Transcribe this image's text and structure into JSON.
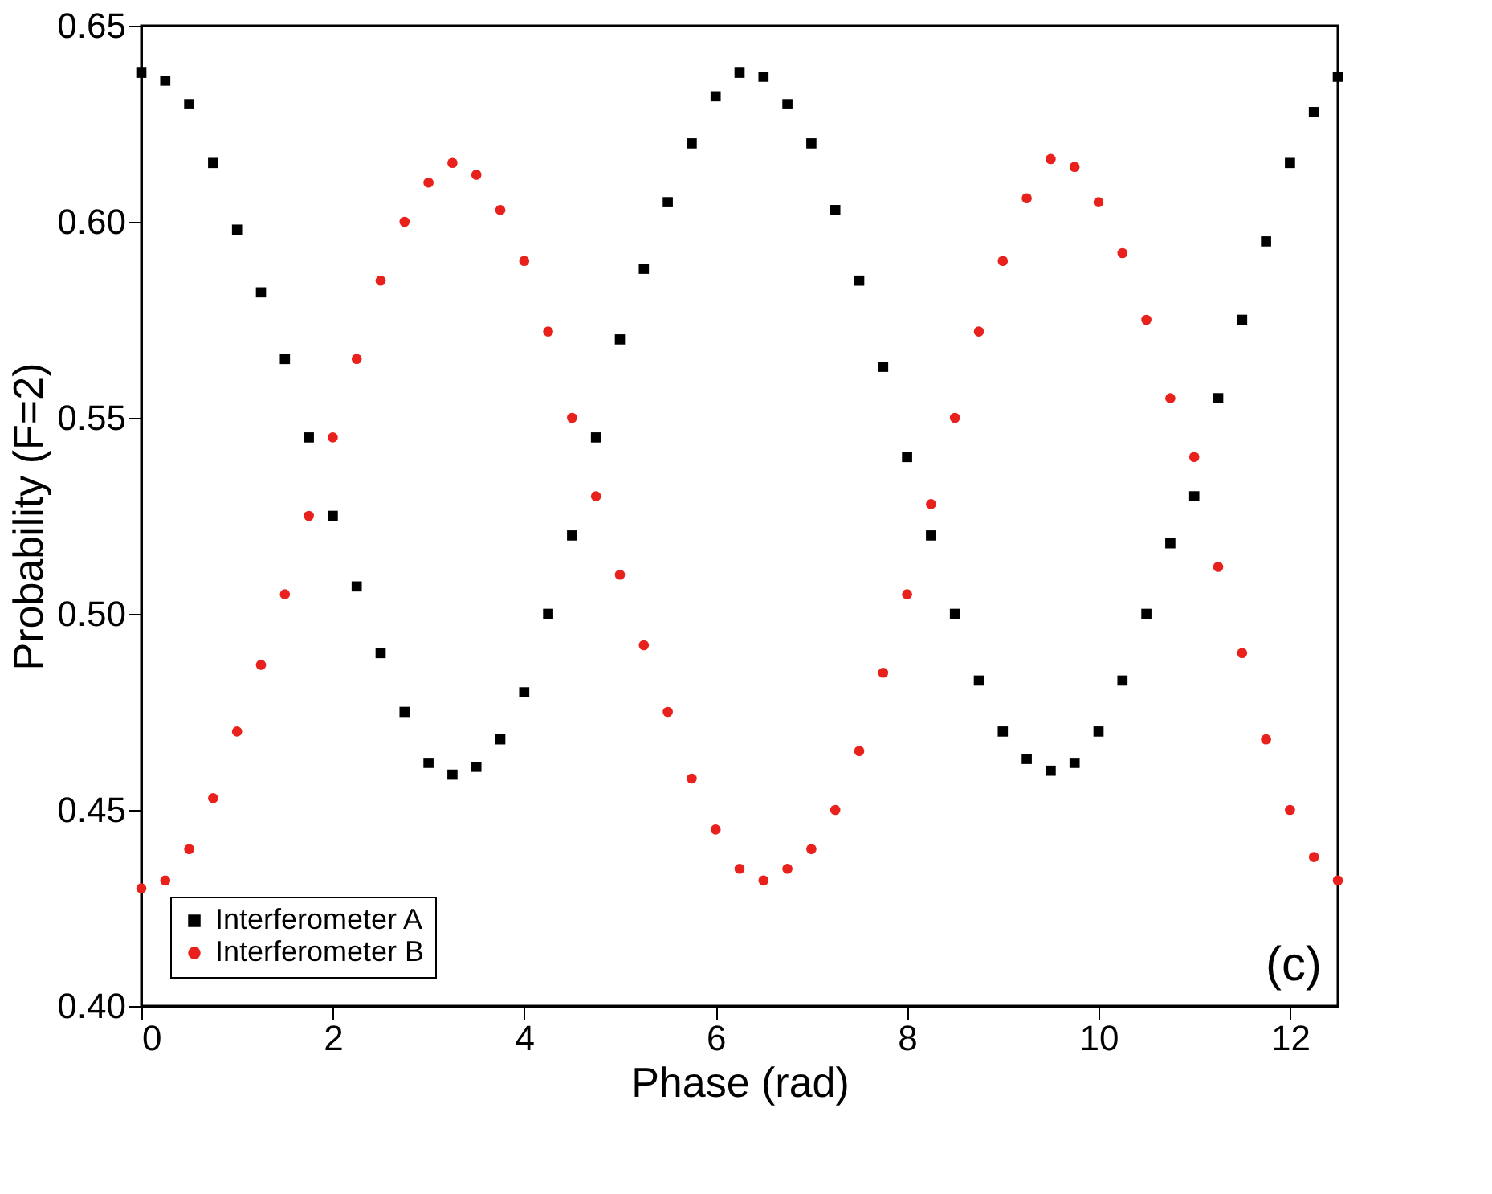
{
  "chart_data": {
    "type": "scatter",
    "xlabel": "Phase (rad)",
    "ylabel": "Probability (F=2)",
    "xlim": [
      0,
      12.5
    ],
    "xticks": [
      0,
      2,
      4,
      6,
      8,
      10,
      12
    ],
    "ylim": [
      0.4,
      0.65
    ],
    "yticks": [
      {
        "value": 0.4,
        "label": "0.40"
      },
      0.45,
      {
        "value": 0.5,
        "label": "0.50"
      },
      0.55,
      {
        "value": 0.6,
        "label": "0.60"
      },
      0.65
    ],
    "grid": false,
    "legend": "bottom left",
    "annotations": [
      "(c)"
    ],
    "series": [
      {
        "name": "Interferometer A",
        "color": "#000000",
        "marker": "square",
        "x": [
          0,
          0.25,
          0.5,
          0.75,
          1,
          1.25,
          1.5,
          1.75,
          2,
          2.25,
          2.5,
          2.75,
          3,
          3.25,
          3.5,
          3.75,
          4,
          4.25,
          4.5,
          4.75,
          5,
          5.25,
          5.5,
          5.75,
          6,
          6.25,
          6.5,
          6.75,
          7,
          7.25,
          7.5,
          7.75,
          8,
          8.25,
          8.5,
          8.75,
          9,
          9.25,
          9.5,
          9.75,
          10,
          10.25,
          10.5,
          10.75,
          11,
          11.25,
          11.5,
          11.75,
          12,
          12.25,
          12.5
        ],
        "values": [
          0.638,
          0.636,
          0.63,
          0.615,
          0.598,
          0.582,
          0.565,
          0.545,
          0.525,
          0.507,
          0.49,
          0.475,
          0.462,
          0.459,
          0.461,
          0.468,
          0.48,
          0.5,
          0.52,
          0.545,
          0.57,
          0.588,
          0.605,
          0.62,
          0.632,
          0.638,
          0.637,
          0.63,
          0.62,
          0.603,
          0.585,
          0.563,
          0.54,
          0.52,
          0.5,
          0.483,
          0.47,
          0.463,
          0.46,
          0.462,
          0.47,
          0.483,
          0.5,
          0.518,
          0.53,
          0.555,
          0.575,
          0.595,
          0.615,
          0.628,
          0.637
        ]
      },
      {
        "name": "Interferometer B",
        "color": "#e8211c",
        "marker": "circle",
        "x": [
          0,
          0.25,
          0.5,
          0.75,
          1,
          1.25,
          1.5,
          1.75,
          2,
          2.25,
          2.5,
          2.75,
          3,
          3.25,
          3.5,
          3.75,
          4,
          4.25,
          4.5,
          4.75,
          5,
          5.25,
          5.5,
          5.75,
          6,
          6.25,
          6.5,
          6.75,
          7,
          7.25,
          7.5,
          7.75,
          8,
          8.25,
          8.5,
          8.75,
          9,
          9.25,
          9.5,
          9.75,
          10,
          10.25,
          10.5,
          10.75,
          11,
          11.25,
          11.5,
          11.75,
          12,
          12.25,
          12.5
        ],
        "values": [
          0.43,
          0.432,
          0.44,
          0.453,
          0.47,
          0.487,
          0.505,
          0.525,
          0.545,
          0.565,
          0.585,
          0.6,
          0.61,
          0.615,
          0.612,
          0.603,
          0.59,
          0.572,
          0.55,
          0.53,
          0.51,
          0.492,
          0.475,
          0.458,
          0.445,
          0.435,
          0.432,
          0.435,
          0.44,
          0.45,
          0.465,
          0.485,
          0.505,
          0.528,
          0.55,
          0.572,
          0.59,
          0.606,
          0.616,
          0.614,
          0.605,
          0.592,
          0.575,
          0.555,
          0.54,
          0.512,
          0.49,
          0.468,
          0.45,
          0.438,
          0.432
        ]
      }
    ]
  }
}
